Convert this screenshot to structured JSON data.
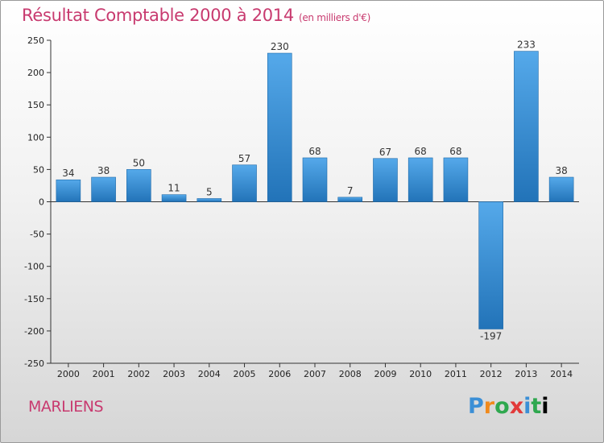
{
  "chart_data": {
    "type": "bar",
    "title": "Résultat Comptable 2000 à 2014",
    "subtitle": "(en milliers d'€)",
    "categories": [
      "2000",
      "2001",
      "2002",
      "2003",
      "2004",
      "2005",
      "2006",
      "2007",
      "2008",
      "2009",
      "2010",
      "2011",
      "2012",
      "2013",
      "2014"
    ],
    "values": [
      34,
      38,
      50,
      11,
      5,
      57,
      230,
      68,
      7,
      67,
      68,
      68,
      -197,
      233,
      38
    ],
    "ylim": [
      -250,
      250
    ],
    "yticks": [
      250,
      200,
      150,
      100,
      50,
      0,
      -50,
      -100,
      -150,
      -200,
      -250
    ],
    "ytick_labels": [
      "250",
      "200",
      "150",
      "100",
      "50",
      "0",
      "-50",
      "-100",
      "-150",
      "-200",
      "-250"
    ],
    "value_labels": [
      "34",
      "38",
      "50",
      "11",
      "5",
      "57",
      "230",
      "68",
      "7",
      "67",
      "68",
      "68",
      "-197",
      "233",
      "38"
    ],
    "grid": false,
    "bar_color": "#3a8fd8",
    "bar_color_dark": "#2577bd"
  },
  "footer": {
    "town": "MARLIENS",
    "brand_letters": [
      "P",
      "r",
      "o",
      "x",
      "i",
      "t",
      "i"
    ]
  }
}
